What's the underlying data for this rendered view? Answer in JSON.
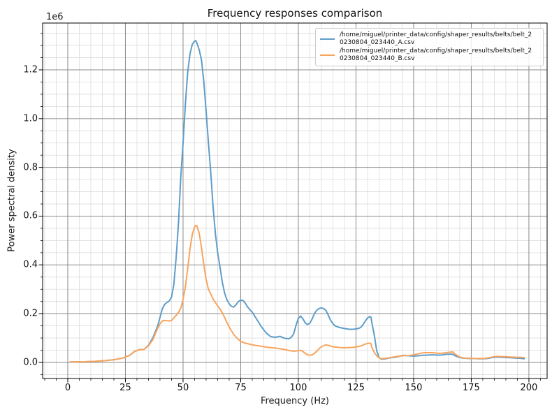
{
  "chart_data": {
    "type": "line",
    "title": "Frequency responses comparison",
    "xlabel": "Frequency (Hz)",
    "ylabel": "Power spectral density",
    "y_offset_label": "1e6",
    "grid": "both",
    "legend_position": "upper right",
    "xlim": [
      -10.9,
      207.9
    ],
    "ylim": [
      -66000,
      1392000
    ],
    "xticks": {
      "values": [
        0,
        25,
        50,
        75,
        100,
        125,
        150,
        175,
        200
      ],
      "labels": [
        "0",
        "25",
        "50",
        "75",
        "100",
        "125",
        "150",
        "175",
        "200"
      ]
    },
    "yticks": {
      "values": [
        0,
        200000,
        400000,
        600000,
        800000,
        1000000,
        1200000
      ],
      "labels": [
        "0.0",
        "0.2",
        "0.4",
        "0.6",
        "0.8",
        "1.0",
        "1.2"
      ]
    },
    "minor_grid": {
      "x_step": 5,
      "y_step": 50000
    },
    "colors": {
      "series_a": "#5e9dc9",
      "series_b": "#f9a45c",
      "grid_major": "#8a8a8a",
      "grid_minor": "#dcdcdc",
      "spine": "#000000"
    },
    "series": [
      {
        "name": "/home/miguel/printer_data/config/shaper_results/belts/belt_20230804_023440_A.csv",
        "legend_line1": "/home/miguel/printer_data/config/shaper_results/belts/belt_2",
        "legend_line2": "0230804_023440_A.csv",
        "color": "#5e9dc9",
        "points": [
          [
            1,
            2000
          ],
          [
            4,
            2500
          ],
          [
            8,
            3000
          ],
          [
            12,
            4500
          ],
          [
            16,
            7000
          ],
          [
            20,
            11000
          ],
          [
            24,
            18000
          ],
          [
            27,
            30000
          ],
          [
            29,
            45000
          ],
          [
            31,
            52000
          ],
          [
            33,
            53000
          ],
          [
            35,
            70000
          ],
          [
            37,
            103000
          ],
          [
            39,
            150000
          ],
          [
            40,
            185000
          ],
          [
            41,
            220000
          ],
          [
            42,
            238000
          ],
          [
            43,
            246000
          ],
          [
            44,
            252000
          ],
          [
            45,
            268000
          ],
          [
            46,
            320000
          ],
          [
            47,
            430000
          ],
          [
            48,
            570000
          ],
          [
            49,
            760000
          ],
          [
            50,
            900000
          ],
          [
            51,
            1060000
          ],
          [
            52,
            1190000
          ],
          [
            53,
            1265000
          ],
          [
            54,
            1305000
          ],
          [
            55,
            1318000
          ],
          [
            55.5,
            1320000
          ],
          [
            56,
            1310000
          ],
          [
            57,
            1282000
          ],
          [
            58,
            1240000
          ],
          [
            59,
            1150000
          ],
          [
            60,
            1030000
          ],
          [
            61,
            900000
          ],
          [
            62,
            780000
          ],
          [
            63,
            640000
          ],
          [
            64,
            530000
          ],
          [
            65,
            450000
          ],
          [
            66,
            392000
          ],
          [
            67,
            330000
          ],
          [
            68,
            285000
          ],
          [
            69,
            257000
          ],
          [
            70,
            240000
          ],
          [
            71,
            230000
          ],
          [
            72,
            227000
          ],
          [
            73,
            237000
          ],
          [
            74,
            250000
          ],
          [
            75,
            255000
          ],
          [
            76,
            254000
          ],
          [
            77,
            243000
          ],
          [
            78,
            227000
          ],
          [
            80,
            206000
          ],
          [
            82,
            176000
          ],
          [
            84,
            146000
          ],
          [
            86,
            121000
          ],
          [
            88,
            106000
          ],
          [
            90,
            103000
          ],
          [
            92,
            107000
          ],
          [
            94,
            99000
          ],
          [
            96,
            97000
          ],
          [
            97,
            104000
          ],
          [
            98,
            118000
          ],
          [
            99,
            152000
          ],
          [
            100,
            180000
          ],
          [
            101,
            190000
          ],
          [
            102,
            179000
          ],
          [
            103,
            162000
          ],
          [
            104,
            155000
          ],
          [
            105,
            161000
          ],
          [
            106,
            178000
          ],
          [
            107,
            200000
          ],
          [
            108,
            214000
          ],
          [
            109,
            221000
          ],
          [
            110,
            224000
          ],
          [
            111,
            221000
          ],
          [
            112,
            213000
          ],
          [
            113,
            194000
          ],
          [
            114,
            173000
          ],
          [
            115,
            159000
          ],
          [
            116,
            150000
          ],
          [
            117,
            146000
          ],
          [
            118,
            143000
          ],
          [
            120,
            139000
          ],
          [
            122,
            136000
          ],
          [
            124,
            136000
          ],
          [
            126,
            139000
          ],
          [
            127,
            143000
          ],
          [
            128,
            154000
          ],
          [
            129,
            169000
          ],
          [
            130,
            182000
          ],
          [
            131,
            188000
          ],
          [
            131.5,
            185000
          ],
          [
            132,
            158000
          ],
          [
            133,
            110000
          ],
          [
            134,
            48000
          ],
          [
            135,
            21000
          ],
          [
            136,
            13000
          ],
          [
            138,
            15000
          ],
          [
            140,
            19000
          ],
          [
            142,
            21000
          ],
          [
            144,
            25000
          ],
          [
            145,
            28000
          ],
          [
            146,
            29000
          ],
          [
            147,
            28000
          ],
          [
            148,
            27000
          ],
          [
            150,
            26000
          ],
          [
            152,
            27000
          ],
          [
            154,
            29000
          ],
          [
            156,
            30000
          ],
          [
            158,
            31000
          ],
          [
            160,
            30000
          ],
          [
            162,
            30000
          ],
          [
            164,
            33000
          ],
          [
            166,
            34000
          ],
          [
            167,
            33000
          ],
          [
            168,
            27000
          ],
          [
            170,
            20000
          ],
          [
            172,
            17000
          ],
          [
            174,
            16000
          ],
          [
            176,
            16000
          ],
          [
            178,
            15000
          ],
          [
            180,
            15000
          ],
          [
            182,
            16000
          ],
          [
            184,
            20000
          ],
          [
            186,
            22000
          ],
          [
            188,
            21000
          ],
          [
            190,
            20000
          ],
          [
            192,
            19000
          ],
          [
            194,
            18000
          ],
          [
            196,
            17000
          ],
          [
            198,
            15000
          ]
        ]
      },
      {
        "name": "/home/miguel/printer_data/config/shaper_results/belts/belt_20230804_023440_B.csv",
        "legend_line1": "/home/miguel/printer_data/config/shaper_results/belts/belt_2",
        "legend_line2": "0230804_023440_B.csv",
        "color": "#f9a45c",
        "points": [
          [
            1,
            2000
          ],
          [
            4,
            2500
          ],
          [
            8,
            3000
          ],
          [
            12,
            4500
          ],
          [
            16,
            7000
          ],
          [
            20,
            11000
          ],
          [
            24,
            18000
          ],
          [
            27,
            30000
          ],
          [
            29,
            45000
          ],
          [
            31,
            52000
          ],
          [
            33,
            53000
          ],
          [
            35,
            68000
          ],
          [
            37,
            95000
          ],
          [
            38,
            118000
          ],
          [
            39,
            140000
          ],
          [
            40,
            158000
          ],
          [
            41,
            170000
          ],
          [
            42,
            172000
          ],
          [
            43,
            171000
          ],
          [
            44,
            170000
          ],
          [
            45,
            172000
          ],
          [
            46,
            183000
          ],
          [
            47,
            193000
          ],
          [
            48,
            205000
          ],
          [
            49,
            222000
          ],
          [
            50,
            258000
          ],
          [
            51,
            310000
          ],
          [
            52,
            385000
          ],
          [
            53,
            465000
          ],
          [
            54,
            525000
          ],
          [
            55,
            556000
          ],
          [
            55.5,
            562000
          ],
          [
            56,
            560000
          ],
          [
            57,
            530000
          ],
          [
            58,
            470000
          ],
          [
            59,
            400000
          ],
          [
            60,
            340000
          ],
          [
            61,
            300000
          ],
          [
            62,
            281000
          ],
          [
            63,
            260000
          ],
          [
            64,
            246000
          ],
          [
            65,
            232000
          ],
          [
            66,
            220000
          ],
          [
            67,
            204000
          ],
          [
            68,
            184000
          ],
          [
            69,
            164000
          ],
          [
            70,
            145000
          ],
          [
            71,
            130000
          ],
          [
            72,
            114000
          ],
          [
            73,
            104000
          ],
          [
            74,
            94000
          ],
          [
            75,
            87000
          ],
          [
            76,
            82000
          ],
          [
            77,
            79000
          ],
          [
            78,
            77000
          ],
          [
            80,
            72000
          ],
          [
            82,
            69000
          ],
          [
            84,
            66000
          ],
          [
            86,
            63000
          ],
          [
            88,
            61000
          ],
          [
            90,
            59000
          ],
          [
            92,
            56000
          ],
          [
            94,
            53000
          ],
          [
            96,
            49000
          ],
          [
            98,
            46000
          ],
          [
            100,
            48000
          ],
          [
            101,
            50000
          ],
          [
            102,
            45000
          ],
          [
            103,
            37000
          ],
          [
            104,
            31000
          ],
          [
            105,
            29000
          ],
          [
            106,
            31000
          ],
          [
            107,
            37000
          ],
          [
            108,
            46000
          ],
          [
            109,
            56000
          ],
          [
            110,
            64000
          ],
          [
            111,
            69000
          ],
          [
            112,
            72000
          ],
          [
            113,
            70000
          ],
          [
            114,
            67000
          ],
          [
            115,
            64000
          ],
          [
            116,
            63000
          ],
          [
            117,
            62000
          ],
          [
            118,
            61000
          ],
          [
            120,
            60000
          ],
          [
            122,
            61000
          ],
          [
            124,
            62000
          ],
          [
            126,
            65000
          ],
          [
            127,
            67000
          ],
          [
            128,
            71000
          ],
          [
            129,
            75000
          ],
          [
            130,
            78000
          ],
          [
            131,
            79000
          ],
          [
            131.5,
            77000
          ],
          [
            132,
            60000
          ],
          [
            133,
            40000
          ],
          [
            134,
            27000
          ],
          [
            135,
            19000
          ],
          [
            136,
            15000
          ],
          [
            138,
            17000
          ],
          [
            140,
            20000
          ],
          [
            142,
            23000
          ],
          [
            144,
            26000
          ],
          [
            146,
            28000
          ],
          [
            148,
            28000
          ],
          [
            150,
            31000
          ],
          [
            152,
            35000
          ],
          [
            154,
            39000
          ],
          [
            156,
            40000
          ],
          [
            158,
            40000
          ],
          [
            160,
            38000
          ],
          [
            162,
            37000
          ],
          [
            164,
            40000
          ],
          [
            166,
            42000
          ],
          [
            167,
            43000
          ],
          [
            168,
            34000
          ],
          [
            170,
            22000
          ],
          [
            172,
            18000
          ],
          [
            174,
            17000
          ],
          [
            176,
            16000
          ],
          [
            178,
            16000
          ],
          [
            180,
            16000
          ],
          [
            182,
            18000
          ],
          [
            184,
            22000
          ],
          [
            186,
            25000
          ],
          [
            188,
            24000
          ],
          [
            190,
            23000
          ],
          [
            192,
            22000
          ],
          [
            194,
            21000
          ],
          [
            196,
            21000
          ],
          [
            198,
            20000
          ]
        ]
      }
    ]
  }
}
